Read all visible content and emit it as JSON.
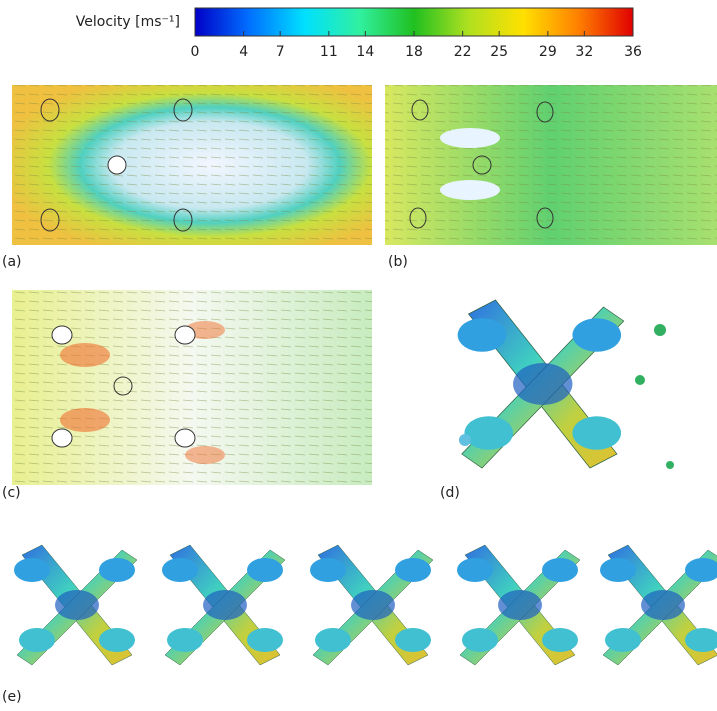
{
  "colorbar": {
    "title": "Velocity [ms⁻¹]",
    "lim": [
      0,
      36
    ],
    "ticks": [
      0,
      4,
      7,
      11,
      14,
      18,
      22,
      25,
      29,
      32,
      36
    ],
    "colors": [
      "#0000c8",
      "#0070ff",
      "#00e0ff",
      "#30f0a0",
      "#20c020",
      "#b0e020",
      "#ffe000",
      "#ff8000",
      "#e00000"
    ]
  },
  "panels": [
    {
      "label": "(a)"
    },
    {
      "label": "(b)"
    },
    {
      "label": "(c)"
    },
    {
      "label": "(d)"
    },
    {
      "label": "(e)"
    }
  ]
}
